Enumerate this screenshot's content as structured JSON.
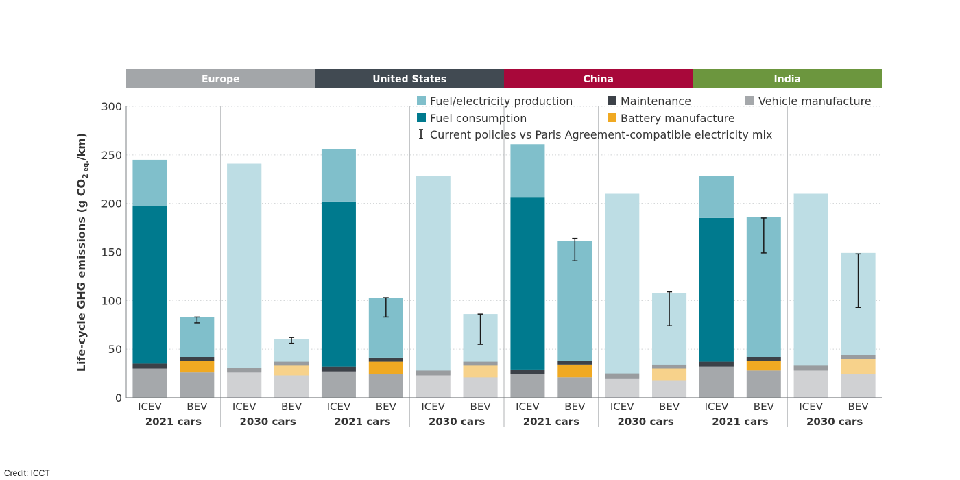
{
  "chart_data": {
    "type": "bar",
    "stacked": true,
    "ylabel": "Life-cycle GHG emissions (g CO2 eq./km)",
    "ylabel_parts": {
      "prefix": "Life-cycle GHG emissions (g CO",
      "sub1": "2",
      "sub2": "eq.",
      "suffix": "/km)"
    },
    "ylim": [
      0,
      300
    ],
    "yticks": [
      0,
      50,
      100,
      150,
      200,
      250,
      300
    ],
    "grid": true,
    "legend_position": "top-right",
    "regions": [
      {
        "name": "Europe",
        "color": "#a3a6a9"
      },
      {
        "name": "United States",
        "color": "#414a52"
      },
      {
        "name": "China",
        "color": "#a8083a"
      },
      {
        "name": "India",
        "color": "#6c963e"
      }
    ],
    "groups": [
      "2021 cars",
      "2030 cars",
      "2021 cars",
      "2030 cars",
      "2021 cars",
      "2030 cars",
      "2021 cars",
      "2030 cars"
    ],
    "categories": [
      "ICEV",
      "BEV",
      "ICEV",
      "BEV",
      "ICEV",
      "BEV",
      "ICEV",
      "BEV",
      "ICEV",
      "BEV",
      "ICEV",
      "BEV",
      "ICEV",
      "BEV",
      "ICEV",
      "BEV"
    ],
    "series": [
      {
        "name": "Vehicle manufacture",
        "color": "#a5a8ab",
        "values": [
          30,
          26,
          26,
          23,
          27,
          24,
          23,
          21,
          24,
          21,
          20,
          18,
          32,
          28,
          28,
          24
        ]
      },
      {
        "name": "Battery manufacture",
        "color": "#f0a922",
        "values": [
          0,
          12,
          0,
          10,
          0,
          13,
          0,
          12,
          0,
          13,
          0,
          12,
          0,
          10,
          0,
          16
        ]
      },
      {
        "name": "Maintenance",
        "color": "#3c4148",
        "values": [
          5,
          4,
          5,
          4,
          5,
          4,
          5,
          4,
          5,
          4,
          5,
          4,
          5,
          4,
          5,
          4
        ]
      },
      {
        "name": "Fuel consumption",
        "color": "#007a8e",
        "values": [
          162,
          0,
          0,
          0,
          170,
          0,
          0,
          0,
          177,
          0,
          0,
          0,
          148,
          0,
          0,
          0
        ]
      },
      {
        "name": "Fuel/electricity production",
        "color": "#80bfcb",
        "values": [
          48,
          41,
          210,
          23,
          54,
          62,
          200,
          49,
          55,
          123,
          185,
          74,
          43,
          144,
          177,
          105
        ]
      }
    ],
    "error_bars": [
      null,
      [
        77,
        83
      ],
      null,
      [
        56,
        62
      ],
      null,
      [
        83,
        103
      ],
      null,
      [
        55,
        86
      ],
      null,
      [
        141,
        164
      ],
      null,
      [
        74,
        109
      ],
      null,
      [
        149,
        185
      ],
      null,
      [
        93,
        148
      ]
    ],
    "legend": [
      {
        "label": "Fuel/electricity production",
        "color": "#80bfcb",
        "marker": "square"
      },
      {
        "label": "Maintenance",
        "color": "#3c4148",
        "marker": "square"
      },
      {
        "label": "Vehicle manufacture",
        "color": "#a5a8ab",
        "marker": "square"
      },
      {
        "label": "Fuel consumption",
        "color": "#007a8e",
        "marker": "square"
      },
      {
        "label": "Battery manufacture",
        "color": "#f0a922",
        "marker": "square"
      },
      {
        "label": "Current policies vs Paris Agreement-compatible electricity mix",
        "color": "#1a1a1a",
        "marker": "errorbar"
      }
    ]
  },
  "credit": "Credit: ICCT"
}
